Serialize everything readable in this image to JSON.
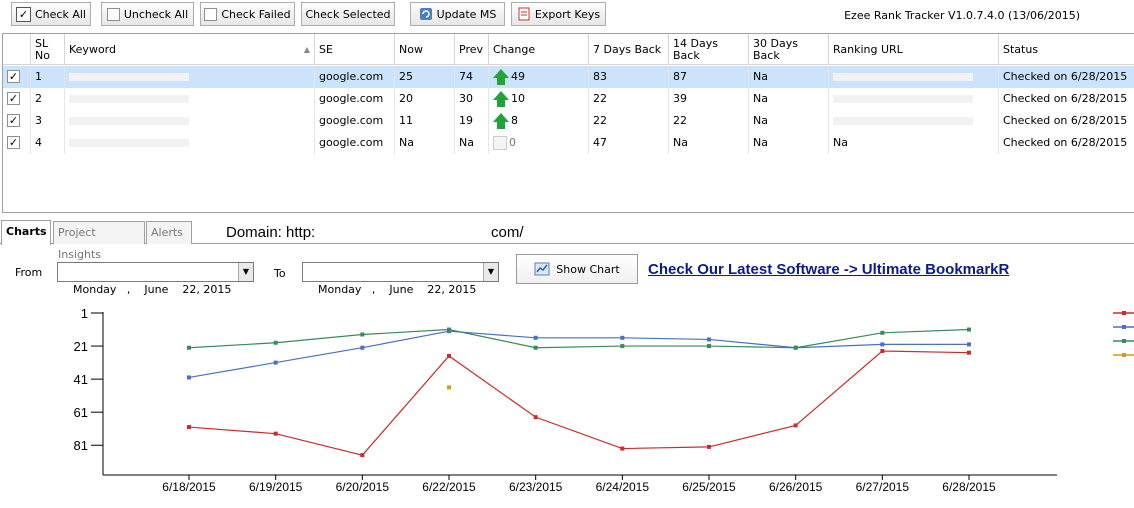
{
  "toolbar": {
    "check_all": "Check All",
    "uncheck_all": "Uncheck All",
    "check_failed": "Check Failed",
    "check_selected": "Check Selected",
    "update_ms": "Update MS",
    "export_keys": "Export Keys",
    "version": "Ezee Rank Tracker V1.0.7.4.0 (13/06/2015)"
  },
  "table": {
    "headers": {
      "sl": "SL No",
      "keyword": "Keyword",
      "se": "SE",
      "now": "Now",
      "prev": "Prev",
      "change": "Change",
      "d7": "7 Days Back",
      "d14": "14 Days Back",
      "d30": "30 Days Back",
      "url": "Ranking URL",
      "status": "Status"
    },
    "rows": [
      {
        "checked": true,
        "sl": "1",
        "se": "google.com",
        "now": "25",
        "prev": "74",
        "change": "49",
        "change_dir": "up",
        "d7": "83",
        "d14": "87",
        "d30": "Na",
        "url": "",
        "status": "Checked on 6/28/2015",
        "selected": true
      },
      {
        "checked": true,
        "sl": "2",
        "se": "google.com",
        "now": "20",
        "prev": "30",
        "change": "10",
        "change_dir": "up",
        "d7": "22",
        "d14": "39",
        "d30": "Na",
        "url": "",
        "status": "Checked on 6/28/2015",
        "selected": false
      },
      {
        "checked": true,
        "sl": "3",
        "se": "google.com",
        "now": "11",
        "prev": "19",
        "change": "8",
        "change_dir": "up",
        "d7": "22",
        "d14": "22",
        "d30": "Na",
        "url": "",
        "status": "Checked on 6/28/2015",
        "selected": false
      },
      {
        "checked": true,
        "sl": "4",
        "se": "google.com",
        "now": "Na",
        "prev": "Na",
        "change": "0",
        "change_dir": "none",
        "d7": "47",
        "d14": "Na",
        "d30": "Na",
        "url": "Na",
        "status": "Checked on 6/28/2015",
        "selected": false
      }
    ]
  },
  "tabs": [
    "Charts",
    "Project Insights",
    "Alerts"
  ],
  "domain_label": "Domain: http:",
  "domain_suffix": "com/",
  "filters": {
    "from_label": "From",
    "to_label": "To",
    "from_day": "Monday",
    "from_month": "June",
    "from_date": "22, 2015",
    "to_day": "Monday",
    "to_month": "June",
    "to_date": "22, 2015",
    "show_chart": "Show Chart",
    "promo": "Check Our Latest Software -> Ultimate BookmarkR"
  },
  "colors": {
    "series1": "#cc2b2b",
    "series2": "#4a6fc4",
    "series3": "#3a8a5a",
    "series4": "#c8a020",
    "selected_row": "#cce4fb",
    "promo": "#0b1a8c"
  },
  "chart_data": {
    "type": "line",
    "x": [
      "6/18/2015",
      "6/19/2015",
      "6/20/2015",
      "6/22/2015",
      "6/23/2015",
      "6/24/2015",
      "6/25/2015",
      "6/26/2015",
      "6/27/2015",
      "6/28/2015"
    ],
    "y_ticks": [
      "1",
      "21",
      "41",
      "61",
      "81"
    ],
    "ylim": [
      1,
      100
    ],
    "y_inverted": true,
    "legend": "right",
    "series": [
      {
        "values": [
          70,
          74,
          87,
          27,
          64,
          83,
          82,
          69,
          24,
          25
        ],
        "color_key": "series1"
      },
      {
        "values": [
          40,
          31,
          22,
          12,
          16,
          16,
          17,
          22,
          20,
          20
        ],
        "color_key": "series2"
      },
      {
        "values": [
          22,
          19,
          14,
          11,
          22,
          21,
          21,
          22,
          13,
          11
        ],
        "color_key": "series3"
      },
      {
        "values": [
          null,
          null,
          null,
          46,
          null,
          null,
          null,
          null,
          null,
          null
        ],
        "color_key": "series4"
      }
    ]
  }
}
